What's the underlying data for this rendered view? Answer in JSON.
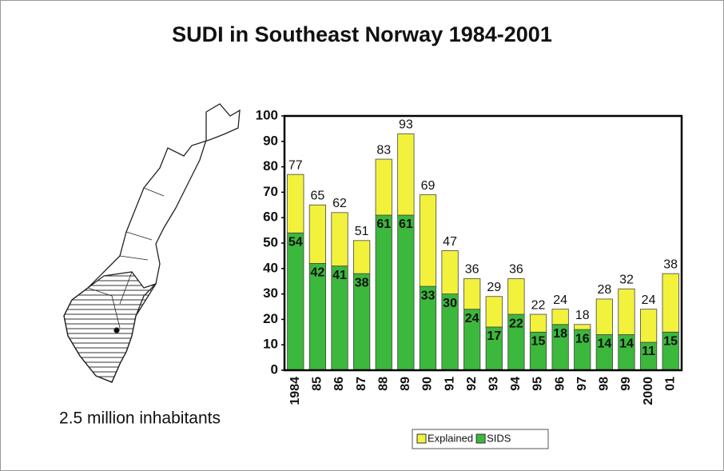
{
  "chart_data": {
    "type": "stacked_bar",
    "title": "SUDI in Southeast Norway 1984-2001",
    "annotation": "2.5 million inhabitants",
    "categories": [
      "1984",
      "85",
      "86",
      "87",
      "88",
      "89",
      "90",
      "91",
      "92",
      "93",
      "94",
      "95",
      "96",
      "97",
      "98",
      "99",
      "2000",
      "01"
    ],
    "series": [
      {
        "name": "SIDS",
        "color": "#3cb83c",
        "values": [
          54,
          42,
          41,
          38,
          61,
          61,
          33,
          30,
          24,
          17,
          22,
          15,
          18,
          16,
          14,
          14,
          11,
          15
        ]
      },
      {
        "name": "Explained",
        "color": "#f2f23c",
        "values": [
          23,
          23,
          21,
          13,
          22,
          32,
          36,
          17,
          12,
          12,
          14,
          7,
          6,
          2,
          14,
          18,
          13,
          23
        ]
      }
    ],
    "totals": [
      77,
      65,
      62,
      51,
      83,
      93,
      69,
      47,
      36,
      29,
      36,
      22,
      24,
      18,
      28,
      32,
      24,
      38
    ],
    "ylim": [
      0,
      100
    ],
    "yticks": [
      0,
      10,
      20,
      30,
      40,
      50,
      60,
      70,
      80,
      90,
      100
    ]
  }
}
